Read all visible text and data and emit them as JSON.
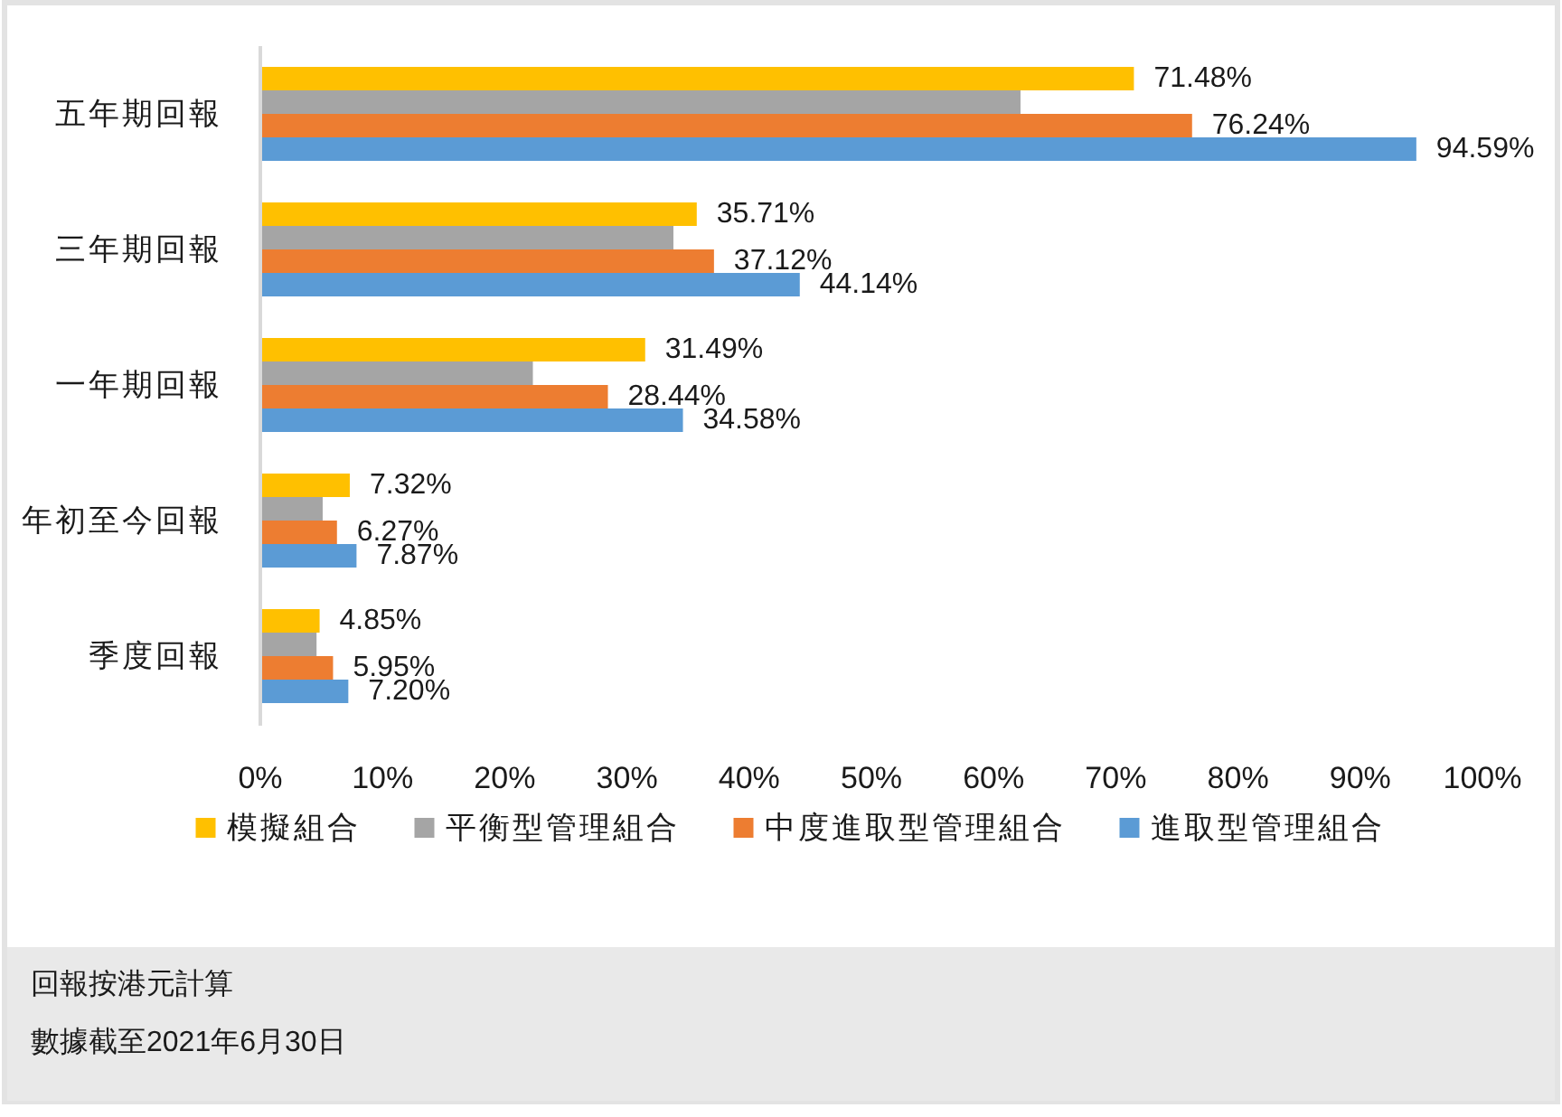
{
  "chart_data": {
    "type": "bar",
    "orientation": "horizontal",
    "categories": [
      "五年期回報",
      "三年期回報",
      "一年期回報",
      "年初至今回報",
      "季度回報"
    ],
    "series": [
      {
        "name": "模擬組合",
        "color": "#ffc000",
        "values": [
          71.48,
          35.71,
          31.49,
          7.32,
          4.85
        ],
        "value_labels": [
          "71.48%",
          "35.71%",
          "31.49%",
          "7.32%",
          "4.85%"
        ]
      },
      {
        "name": "平衡型管理組合",
        "color": "#a5a5a5",
        "values": [
          62.2,
          33.8,
          22.3,
          5.1,
          4.6
        ]
      },
      {
        "name": "中度進取型管理組合",
        "color": "#ed7d31",
        "values": [
          76.24,
          37.12,
          28.44,
          6.27,
          5.95
        ],
        "value_labels": [
          "76.24%",
          "37.12%",
          "28.44%",
          "6.27%",
          "5.95%"
        ]
      },
      {
        "name": "進取型管理組合",
        "color": "#5b9bd5",
        "values": [
          94.59,
          44.14,
          34.58,
          7.87,
          7.2
        ],
        "value_labels": [
          "94.59%",
          "44.14%",
          "34.58%",
          "7.87%",
          "7.20%"
        ]
      }
    ],
    "xlim": [
      0,
      100
    ],
    "xticks": [
      {
        "value": 0,
        "label": "0%"
      },
      {
        "value": 10,
        "label": "10%"
      },
      {
        "value": 20,
        "label": "20%"
      },
      {
        "value": 30,
        "label": "30%"
      },
      {
        "value": 40,
        "label": "40%"
      },
      {
        "value": 50,
        "label": "50%"
      },
      {
        "value": 60,
        "label": "60%"
      },
      {
        "value": 70,
        "label": "70%"
      },
      {
        "value": 80,
        "label": "80%"
      },
      {
        "value": 90,
        "label": "90%"
      },
      {
        "value": 100,
        "label": "100%"
      }
    ],
    "legend": "bottom",
    "annotations": [
      "回報按港元計算",
      "數據截至2021年6月30日"
    ]
  }
}
